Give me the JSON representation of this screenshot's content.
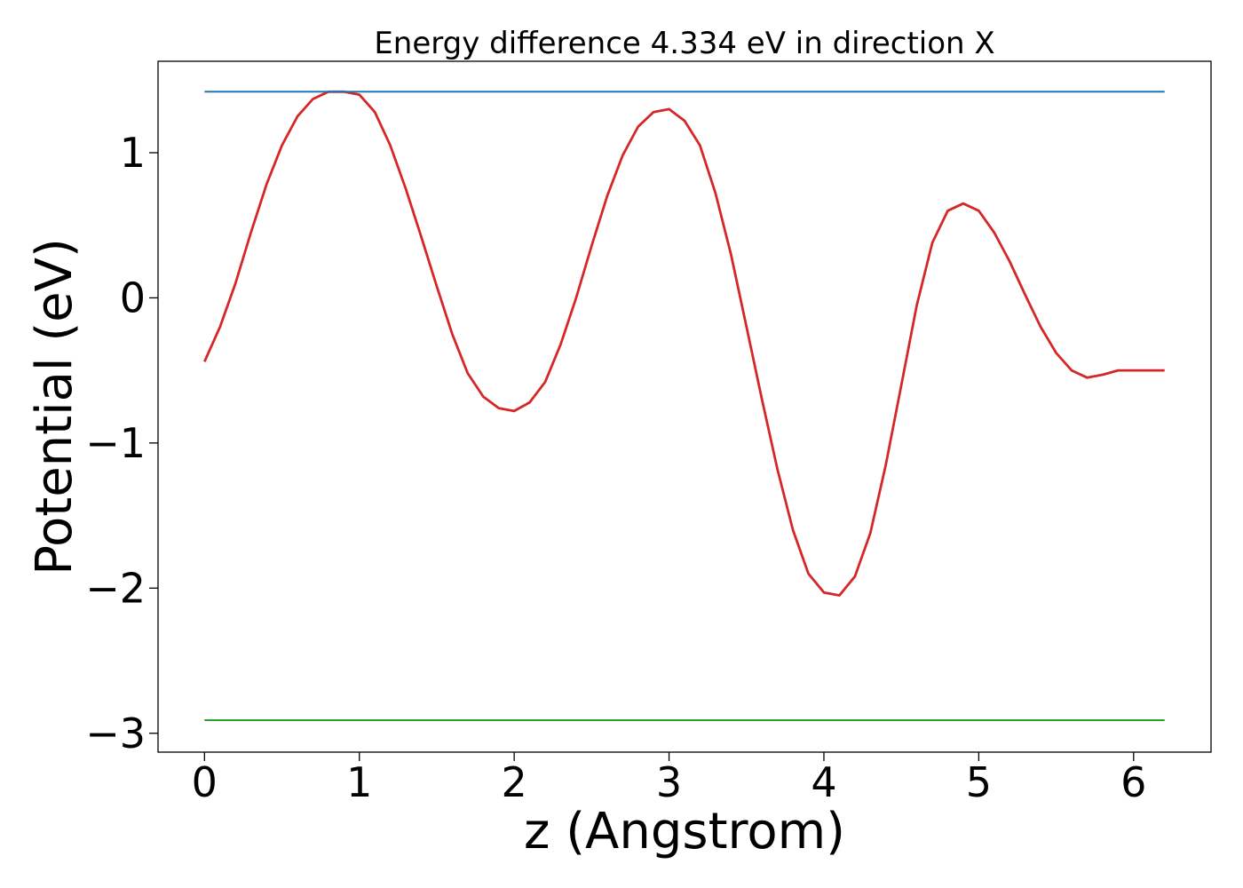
{
  "chart_data": {
    "type": "line",
    "title": "Energy difference 4.334 eV in direction X",
    "xlabel": "z (Angstrom)",
    "ylabel": "Potential (eV)",
    "xlim": [
      -0.3,
      6.5
    ],
    "ylim": [
      -3.13,
      1.63
    ],
    "xticks": [
      0,
      1,
      2,
      3,
      4,
      5,
      6
    ],
    "xtick_labels": [
      "0",
      "1",
      "2",
      "3",
      "4",
      "5",
      "6"
    ],
    "yticks": [
      1,
      0,
      -1,
      -2,
      -3
    ],
    "ytick_labels": [
      "1",
      "0",
      "−1",
      "−2",
      "−3"
    ],
    "grid": false,
    "series": [
      {
        "color": "#d62728",
        "x": [
          0,
          0.1,
          0.2,
          0.3,
          0.4,
          0.5,
          0.6,
          0.7,
          0.8,
          0.9,
          1.0,
          1.1,
          1.2,
          1.3,
          1.4,
          1.5,
          1.6,
          1.7,
          1.8,
          1.9,
          2.0,
          2.1,
          2.2,
          2.3,
          2.4,
          2.5,
          2.6,
          2.7,
          2.8,
          2.9,
          3.0,
          3.1,
          3.2,
          3.3,
          3.4,
          3.5,
          3.6,
          3.7,
          3.8,
          3.9,
          4.0,
          4.1,
          4.2,
          4.3,
          4.4,
          4.5,
          4.6,
          4.7,
          4.8,
          4.9,
          5.0,
          5.1,
          5.2,
          5.3,
          5.4,
          5.5,
          5.6,
          5.7,
          5.8,
          5.9,
          6.0,
          6.1,
          6.2
        ],
        "y": [
          -0.44,
          -0.2,
          0.1,
          0.45,
          0.78,
          1.05,
          1.25,
          1.37,
          1.42,
          1.42,
          1.4,
          1.28,
          1.05,
          0.75,
          0.42,
          0.08,
          -0.25,
          -0.52,
          -0.68,
          -0.76,
          -0.78,
          -0.72,
          -0.58,
          -0.32,
          0.0,
          0.36,
          0.7,
          0.98,
          1.18,
          1.28,
          1.3,
          1.22,
          1.05,
          0.72,
          0.3,
          -0.2,
          -0.7,
          -1.18,
          -1.6,
          -1.9,
          -2.03,
          -2.05,
          -1.92,
          -1.62,
          -1.15,
          -0.6,
          -0.05,
          0.38,
          0.6,
          0.65,
          0.6,
          0.45,
          0.25,
          0.02,
          -0.2,
          -0.38,
          -0.5,
          -0.55,
          -0.53,
          -0.5,
          -0.5,
          -0.5,
          -0.5
        ]
      },
      {
        "color": "#1f77b4",
        "x": [
          0,
          6.2
        ],
        "y": [
          1.42,
          1.42
        ]
      },
      {
        "color": "#2ca02c",
        "x": [
          0,
          6.2
        ],
        "y": [
          -2.91,
          -2.91
        ]
      }
    ]
  }
}
